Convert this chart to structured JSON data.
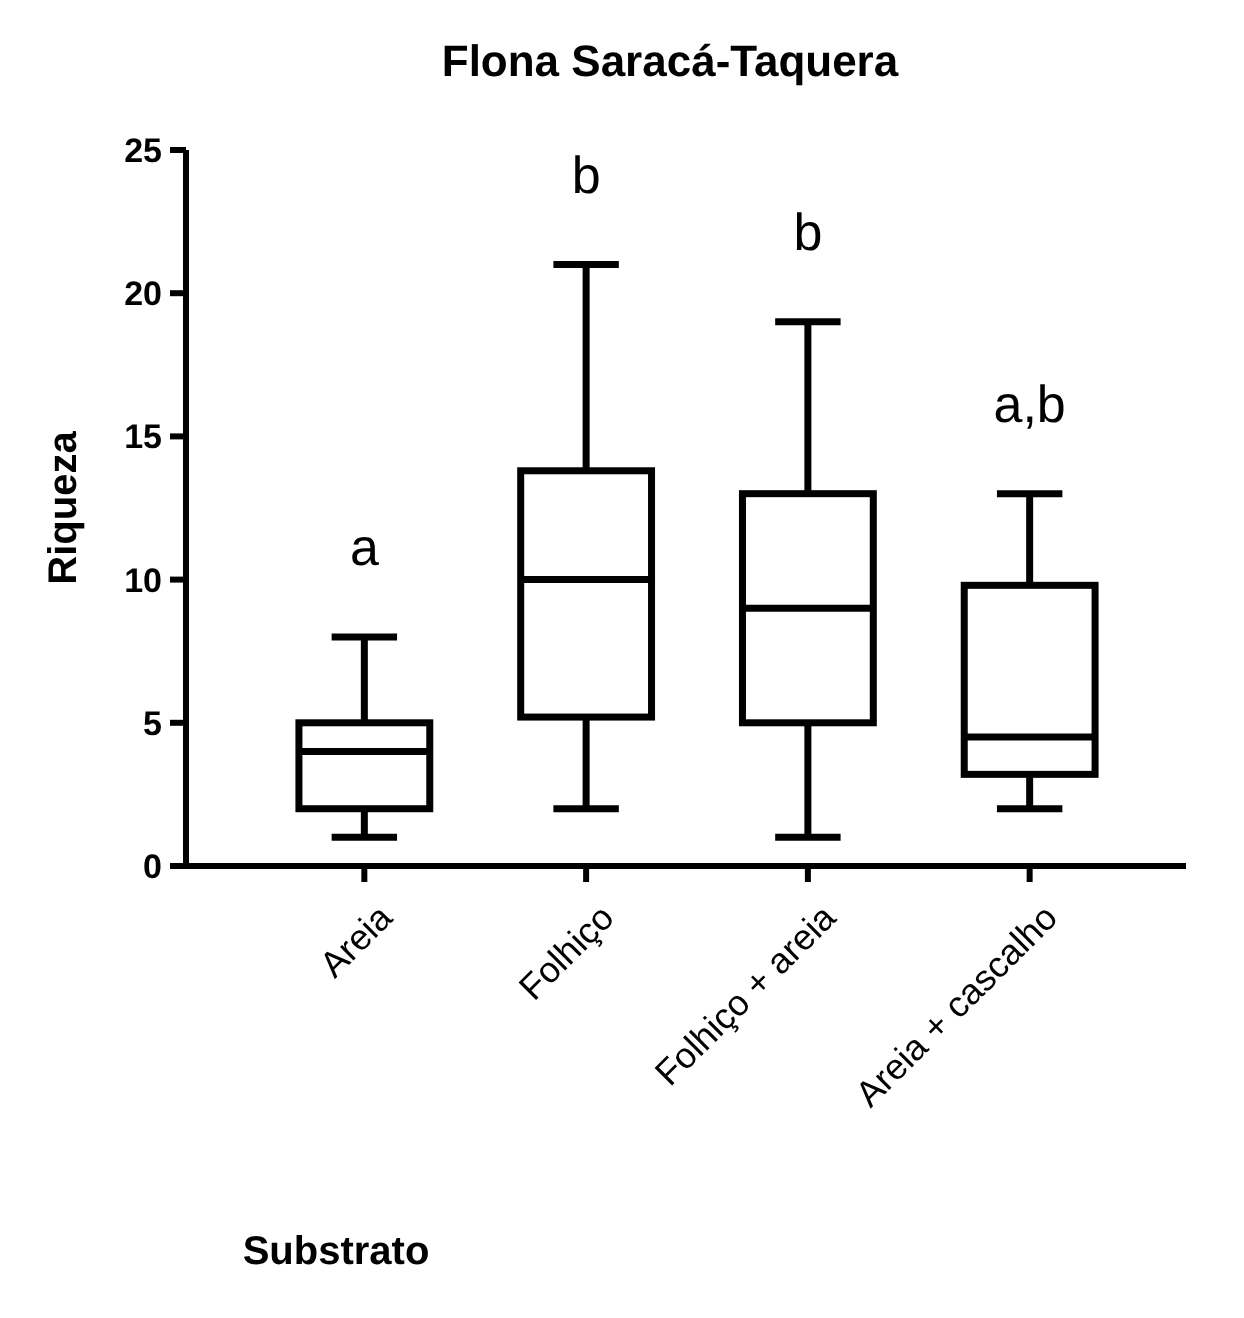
{
  "chart_data": {
    "type": "box",
    "title": "Flona Saracá-Taquera",
    "xlabel": "Substrato",
    "ylabel": "Riqueza",
    "categories": [
      "Areia",
      "Folhiço",
      "Folhiço + areia",
      "Areia + cascalho"
    ],
    "boxes": [
      {
        "low": 1,
        "q1": 2,
        "median": 4,
        "q3": 5,
        "high": 8
      },
      {
        "low": 2,
        "q1": 5.2,
        "median": 10,
        "q3": 13.8,
        "high": 21
      },
      {
        "low": 1,
        "q1": 5,
        "median": 9,
        "q3": 13,
        "high": 19
      },
      {
        "low": 2,
        "q1": 3.2,
        "median": 4.5,
        "q3": 9.8,
        "high": 13
      }
    ],
    "color": "#000000",
    "ylim": [
      0,
      25
    ],
    "yticks": [
      0,
      5,
      10,
      15,
      20,
      25
    ],
    "grid": false,
    "annotations": [
      "a",
      "b",
      "b",
      "a,b"
    ]
  }
}
